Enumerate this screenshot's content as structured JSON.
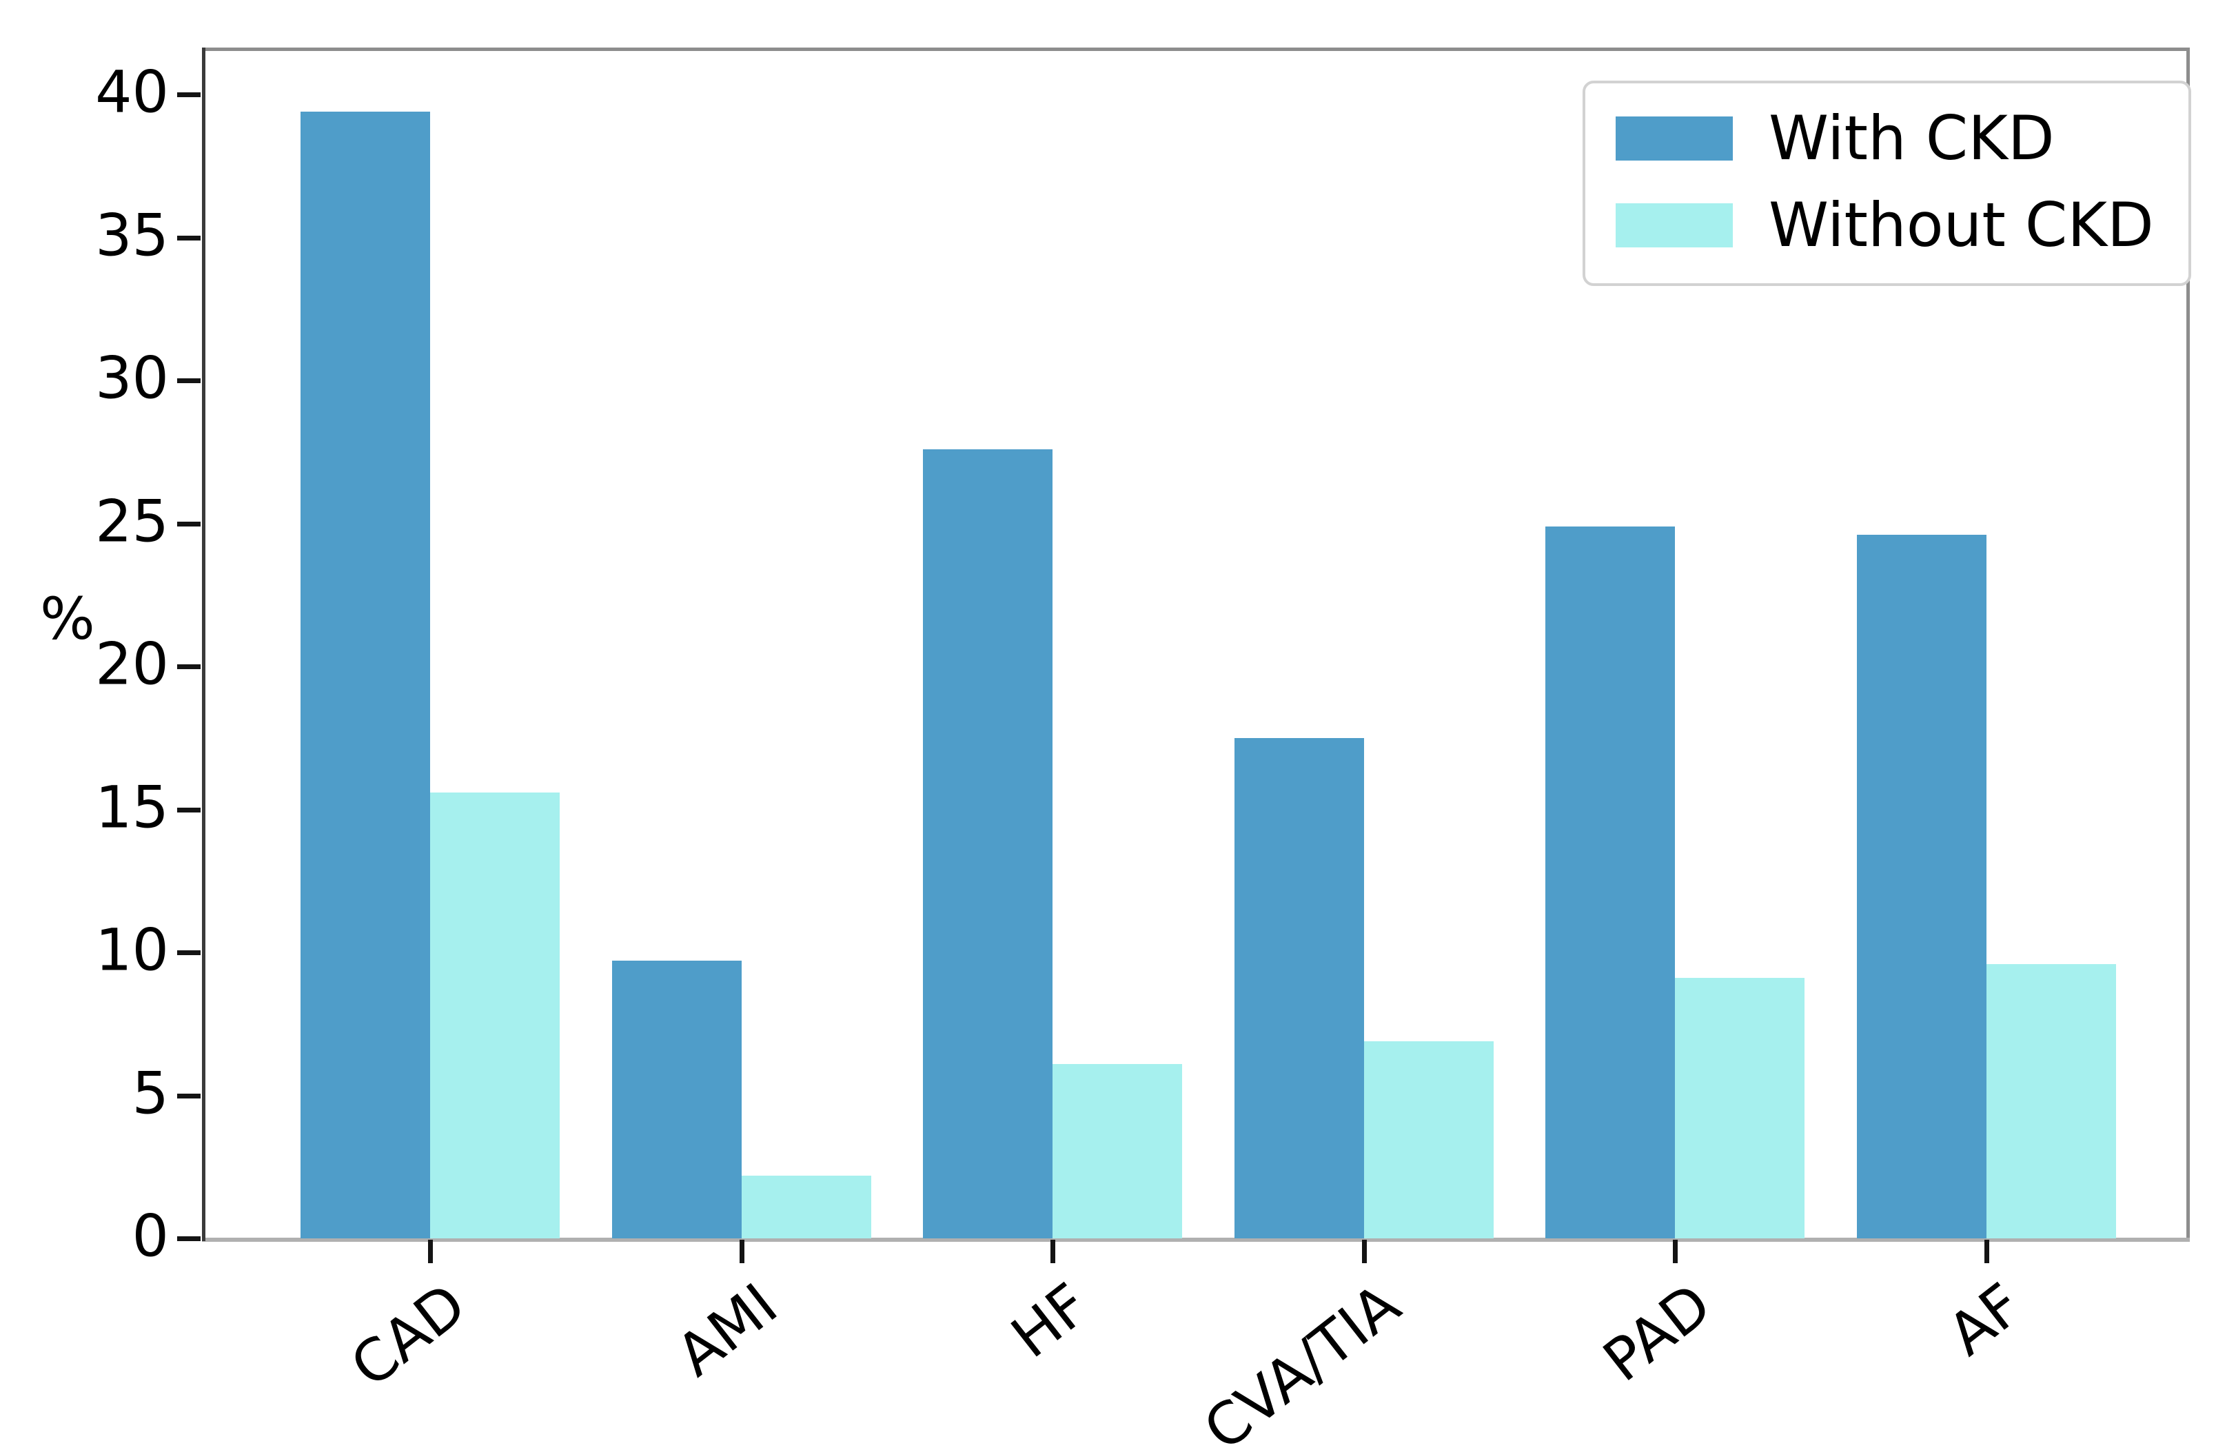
{
  "figure": {
    "background": "#ffffff"
  },
  "chart_data": {
    "type": "bar",
    "title": "",
    "xlabel": "",
    "ylabel": "%",
    "categories": [
      "CAD",
      "AMI",
      "HF",
      "CVA/TIA",
      "PAD",
      "AF"
    ],
    "series": [
      {
        "name": "With CKD",
        "color": "#4f9dc9",
        "values": [
          39.4,
          9.7,
          27.6,
          17.5,
          24.9,
          24.6
        ]
      },
      {
        "name": "Without CKD",
        "color": "#a6f0ee",
        "values": [
          15.6,
          2.2,
          6.1,
          6.9,
          9.1,
          9.6
        ]
      }
    ],
    "ylim": [
      0,
      41.5
    ],
    "yticks": [
      0,
      5,
      10,
      15,
      20,
      25,
      30,
      35,
      40
    ],
    "grid": false,
    "legend_position": "upper right",
    "legend_labels": [
      "With CKD",
      "Without CKD"
    ],
    "xtick_rotation_deg": 38,
    "axis_colors": {
      "left": "#3a3a3a",
      "top": "#8d8d8d",
      "right": "#8d8d8d",
      "bottom": "#b0b0b0",
      "tick": "#141414"
    }
  }
}
